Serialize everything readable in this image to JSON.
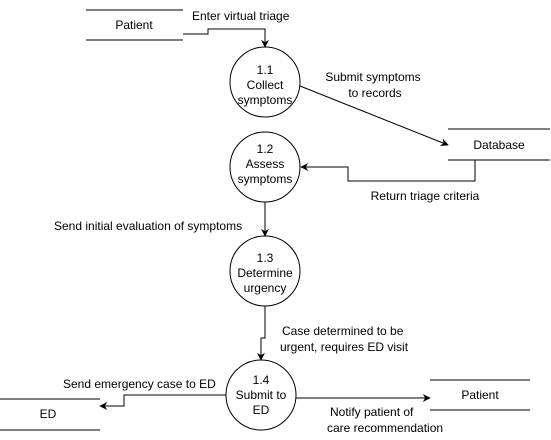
{
  "diagram": {
    "type": "data-flow-diagram",
    "external_entities": [
      {
        "id": "patient-top",
        "label": "Patient"
      },
      {
        "id": "ed",
        "label": "ED"
      },
      {
        "id": "patient-bottom",
        "label": "Patient"
      }
    ],
    "data_stores": [
      {
        "id": "database",
        "label": "Database"
      }
    ],
    "processes": [
      {
        "id": "p1",
        "number": "1.1",
        "lines": [
          "Collect",
          "symptoms"
        ]
      },
      {
        "id": "p2",
        "number": "1.2",
        "lines": [
          "Assess",
          "symptoms"
        ]
      },
      {
        "id": "p3",
        "number": "1.3",
        "lines": [
          "Determine",
          "urgency"
        ]
      },
      {
        "id": "p4",
        "number": "1.4",
        "lines": [
          "Submit to",
          "ED"
        ]
      }
    ],
    "flows": [
      {
        "id": "f1",
        "from": "patient-top",
        "to": "p1",
        "lines": [
          "Enter virtual triage"
        ]
      },
      {
        "id": "f2",
        "from": "p1",
        "to": "database",
        "lines": [
          "Submit symptoms",
          "to records"
        ]
      },
      {
        "id": "f3",
        "from": "database",
        "to": "p2",
        "lines": [
          "Return triage criteria"
        ]
      },
      {
        "id": "f4",
        "from": "p2",
        "to": "p3",
        "lines": [
          "Send initial evaluation of symptoms"
        ]
      },
      {
        "id": "f5",
        "from": "p3",
        "to": "p4",
        "lines": [
          "Case determined to be",
          "urgent, requires ED visit"
        ]
      },
      {
        "id": "f6",
        "from": "p4",
        "to": "ed",
        "lines": [
          "Send emergency case to ED"
        ]
      },
      {
        "id": "f7",
        "from": "p4",
        "to": "patient-bottom",
        "lines": [
          "Notify patient of",
          "care recommendation"
        ]
      }
    ]
  }
}
